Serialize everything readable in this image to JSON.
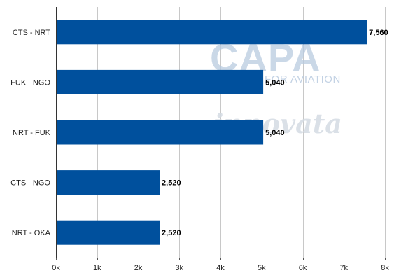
{
  "chart_data": {
    "type": "bar",
    "orientation": "horizontal",
    "categories": [
      "CTS - NRT",
      "FUK - NGO",
      "NRT - FUK",
      "CTS - NGO",
      "NRT - OKA"
    ],
    "values": [
      7560,
      5040,
      5040,
      2520,
      2520
    ],
    "value_labels": [
      "7,560",
      "5,040",
      "5,040",
      "2,520",
      "2,520"
    ],
    "xlim": [
      0,
      8000
    ],
    "x_ticks": [
      0,
      1000,
      2000,
      3000,
      4000,
      5000,
      6000,
      7000,
      8000
    ],
    "x_tick_labels": [
      "0k",
      "1k",
      "2k",
      "3k",
      "4k",
      "5k",
      "6k",
      "7k",
      "8k"
    ],
    "grid": true,
    "bar_color": "#00509d",
    "title": "",
    "xlabel": "",
    "ylabel": ""
  },
  "watermarks": {
    "capa": "CAPA",
    "capa_sub": "FOR AVIATION",
    "innovata": "innovata"
  }
}
